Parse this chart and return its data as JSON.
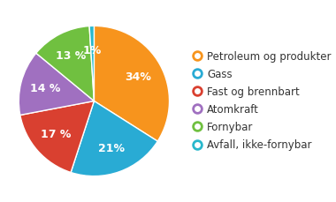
{
  "labels": [
    "Petroleum og produkter",
    "Gass",
    "Fast og brennbart",
    "Atomkraft",
    "Fornybar",
    "Avfall, ikke-fornybar"
  ],
  "values": [
    34,
    21,
    17,
    14,
    13,
    1
  ],
  "colors": [
    "#F7941D",
    "#29ABD4",
    "#D94030",
    "#A070C0",
    "#70C040",
    "#29B8CC"
  ],
  "pct_labels": [
    "34%",
    "21%",
    "17 %",
    "14 %",
    "13 %",
    "1%"
  ],
  "background_color": "#ffffff",
  "label_fontsize": 9,
  "legend_fontsize": 8.5
}
